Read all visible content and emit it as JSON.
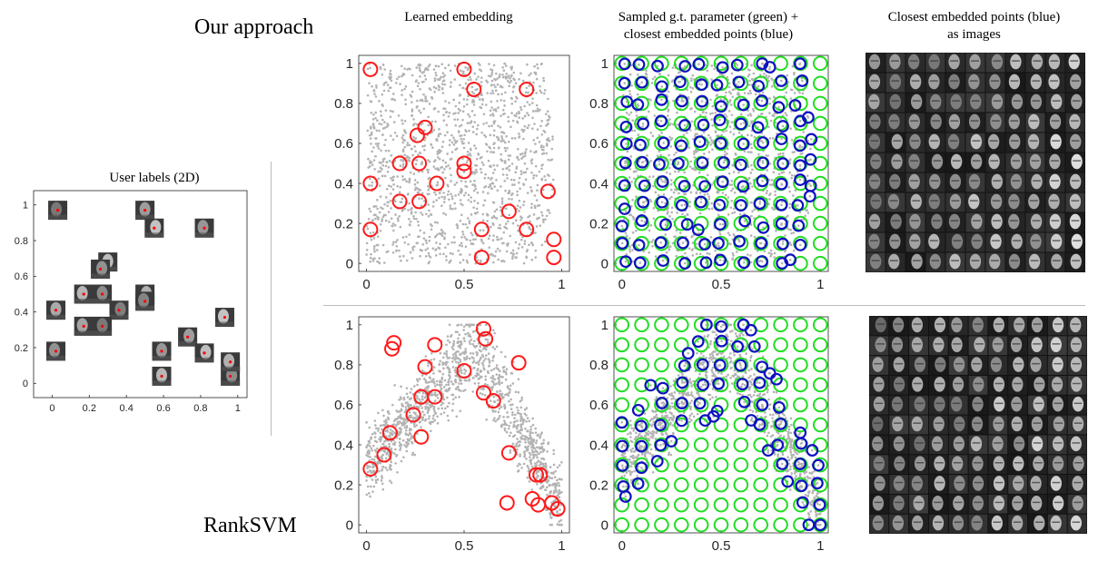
{
  "labels": {
    "our_approach": "Our approach",
    "ranksvm": "RankSVM",
    "col1": "Learned embedding",
    "col2_l1": "Sampled g.t. parameter (green) +",
    "col2_l2": "closest embedded points (blue)",
    "col3_l1": "Closest embedded points (blue)",
    "col3_l2": "as images",
    "user_labels": "User labels (2D)"
  },
  "colors": {
    "cloud": "#b3b3b3",
    "red": "#ff1a1a",
    "green": "#22dd22",
    "blue": "#1010c0",
    "face_dot": "#ff0000"
  },
  "chart_data": [
    {
      "id": "user_labels",
      "type": "scatter",
      "title": "User labels (2D)",
      "xlim": [
        -0.1,
        1.05
      ],
      "ylim": [
        -0.08,
        1.08
      ],
      "xticks": [
        0,
        0.2,
        0.4,
        0.6,
        0.8,
        1
      ],
      "yticks": [
        0,
        0.2,
        0.4,
        0.6,
        0.8,
        1
      ],
      "marker": "face-thumbnail",
      "points": [
        [
          0.03,
          0.97
        ],
        [
          0.5,
          0.97
        ],
        [
          0.55,
          0.87
        ],
        [
          0.82,
          0.87
        ],
        [
          0.3,
          0.68
        ],
        [
          0.26,
          0.64
        ],
        [
          0.17,
          0.5
        ],
        [
          0.27,
          0.5
        ],
        [
          0.5,
          0.5
        ],
        [
          0.5,
          0.46
        ],
        [
          0.02,
          0.41
        ],
        [
          0.36,
          0.41
        ],
        [
          0.17,
          0.32
        ],
        [
          0.27,
          0.32
        ],
        [
          0.73,
          0.26
        ],
        [
          0.93,
          0.37
        ],
        [
          0.59,
          0.18
        ],
        [
          0.82,
          0.17
        ],
        [
          0.02,
          0.18
        ],
        [
          0.59,
          0.04
        ],
        [
          0.96,
          0.04
        ],
        [
          0.96,
          0.12
        ]
      ]
    },
    {
      "id": "ours_embedding",
      "type": "scatter",
      "title": "Learned embedding",
      "xlim": [
        -0.04,
        1.04
      ],
      "ylim": [
        -0.04,
        1.04
      ],
      "xticks": [
        0,
        0.5,
        1
      ],
      "yticks": [
        0,
        0.2,
        0.4,
        0.6,
        0.8,
        1
      ],
      "cloud_shape": "square",
      "red_circles": [
        [
          0.02,
          0.97
        ],
        [
          0.5,
          0.97
        ],
        [
          0.55,
          0.87
        ],
        [
          0.82,
          0.87
        ],
        [
          0.3,
          0.68
        ],
        [
          0.26,
          0.64
        ],
        [
          0.17,
          0.5
        ],
        [
          0.27,
          0.5
        ],
        [
          0.5,
          0.5
        ],
        [
          0.5,
          0.46
        ],
        [
          0.02,
          0.4
        ],
        [
          0.36,
          0.4
        ],
        [
          0.17,
          0.31
        ],
        [
          0.27,
          0.31
        ],
        [
          0.73,
          0.26
        ],
        [
          0.93,
          0.36
        ],
        [
          0.59,
          0.17
        ],
        [
          0.82,
          0.17
        ],
        [
          0.02,
          0.17
        ],
        [
          0.59,
          0.03
        ],
        [
          0.96,
          0.03
        ],
        [
          0.96,
          0.12
        ]
      ]
    },
    {
      "id": "ours_sampled",
      "type": "scatter",
      "title": "Sampled g.t. parameter (green) + closest embedded points (blue)",
      "xlim": [
        -0.04,
        1.04
      ],
      "ylim": [
        -0.04,
        1.04
      ],
      "xticks": [
        0,
        0.5,
        1
      ],
      "yticks": [
        0,
        0.2,
        0.4,
        0.6,
        0.8,
        1
      ],
      "green_grid": {
        "start": 0,
        "step": 0.1,
        "count": 11
      },
      "cloud_shape": "square",
      "blue_jitter": 0.035
    },
    {
      "id": "ranksvm_embedding",
      "type": "scatter",
      "title": "",
      "xlim": [
        -0.04,
        1.04
      ],
      "ylim": [
        -0.04,
        1.04
      ],
      "xticks": [
        0,
        0.5,
        1
      ],
      "yticks": [
        0,
        0.2,
        0.4,
        0.6,
        0.8,
        1
      ],
      "cloud_shape": "arch",
      "red_circles": [
        [
          0.14,
          0.91
        ],
        [
          0.13,
          0.88
        ],
        [
          0.35,
          0.9
        ],
        [
          0.6,
          0.98
        ],
        [
          0.61,
          0.93
        ],
        [
          0.78,
          0.81
        ],
        [
          0.3,
          0.79
        ],
        [
          0.5,
          0.77
        ],
        [
          0.28,
          0.64
        ],
        [
          0.35,
          0.64
        ],
        [
          0.6,
          0.66
        ],
        [
          0.65,
          0.62
        ],
        [
          0.24,
          0.55
        ],
        [
          0.28,
          0.44
        ],
        [
          0.12,
          0.46
        ],
        [
          0.09,
          0.35
        ],
        [
          0.02,
          0.28
        ],
        [
          0.73,
          0.36
        ],
        [
          0.87,
          0.25
        ],
        [
          0.89,
          0.25
        ],
        [
          0.72,
          0.11
        ],
        [
          0.85,
          0.13
        ],
        [
          0.88,
          0.1
        ],
        [
          0.95,
          0.11
        ],
        [
          0.98,
          0.08
        ]
      ]
    },
    {
      "id": "ranksvm_sampled",
      "type": "scatter",
      "title": "",
      "xlim": [
        -0.04,
        1.04
      ],
      "ylim": [
        -0.04,
        1.04
      ],
      "xticks": [
        0,
        0.5,
        1
      ],
      "yticks": [
        0,
        0.2,
        0.4,
        0.6,
        0.8,
        1
      ],
      "green_grid": {
        "start": 0,
        "step": 0.1,
        "count": 11
      },
      "cloud_shape": "arch",
      "blue_jitter": 0.035
    }
  ]
}
